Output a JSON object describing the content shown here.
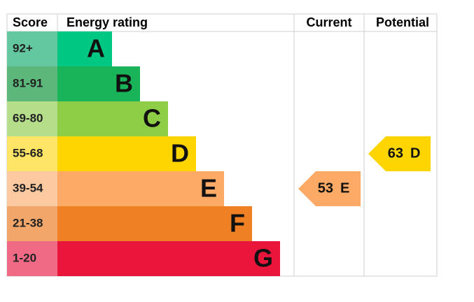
{
  "chart_data": {
    "type": "epc",
    "headers": [
      "Score",
      "Energy rating",
      "Current",
      "Potential"
    ],
    "bands": [
      {
        "score": "92+",
        "letter": "A",
        "color": "#00c781",
        "score_color": "#63c8a0"
      },
      {
        "score": "81-91",
        "letter": "B",
        "color": "#19b459",
        "score_color": "#5cb87a"
      },
      {
        "score": "69-80",
        "letter": "C",
        "color": "#8dce46",
        "score_color": "#b5de8a"
      },
      {
        "score": "55-68",
        "letter": "D",
        "color": "#ffd500",
        "score_color": "#ffe566"
      },
      {
        "score": "39-54",
        "letter": "E",
        "color": "#fcaa65",
        "score_color": "#fdc9a0"
      },
      {
        "score": "21-38",
        "letter": "F",
        "color": "#ef8023",
        "score_color": "#f3a66a"
      },
      {
        "score": "1-20",
        "letter": "G",
        "color": "#e9153b",
        "score_color": "#f06a85"
      }
    ],
    "current": {
      "value": 53,
      "letter": "E"
    },
    "potential": {
      "value": 63,
      "letter": "D"
    }
  }
}
